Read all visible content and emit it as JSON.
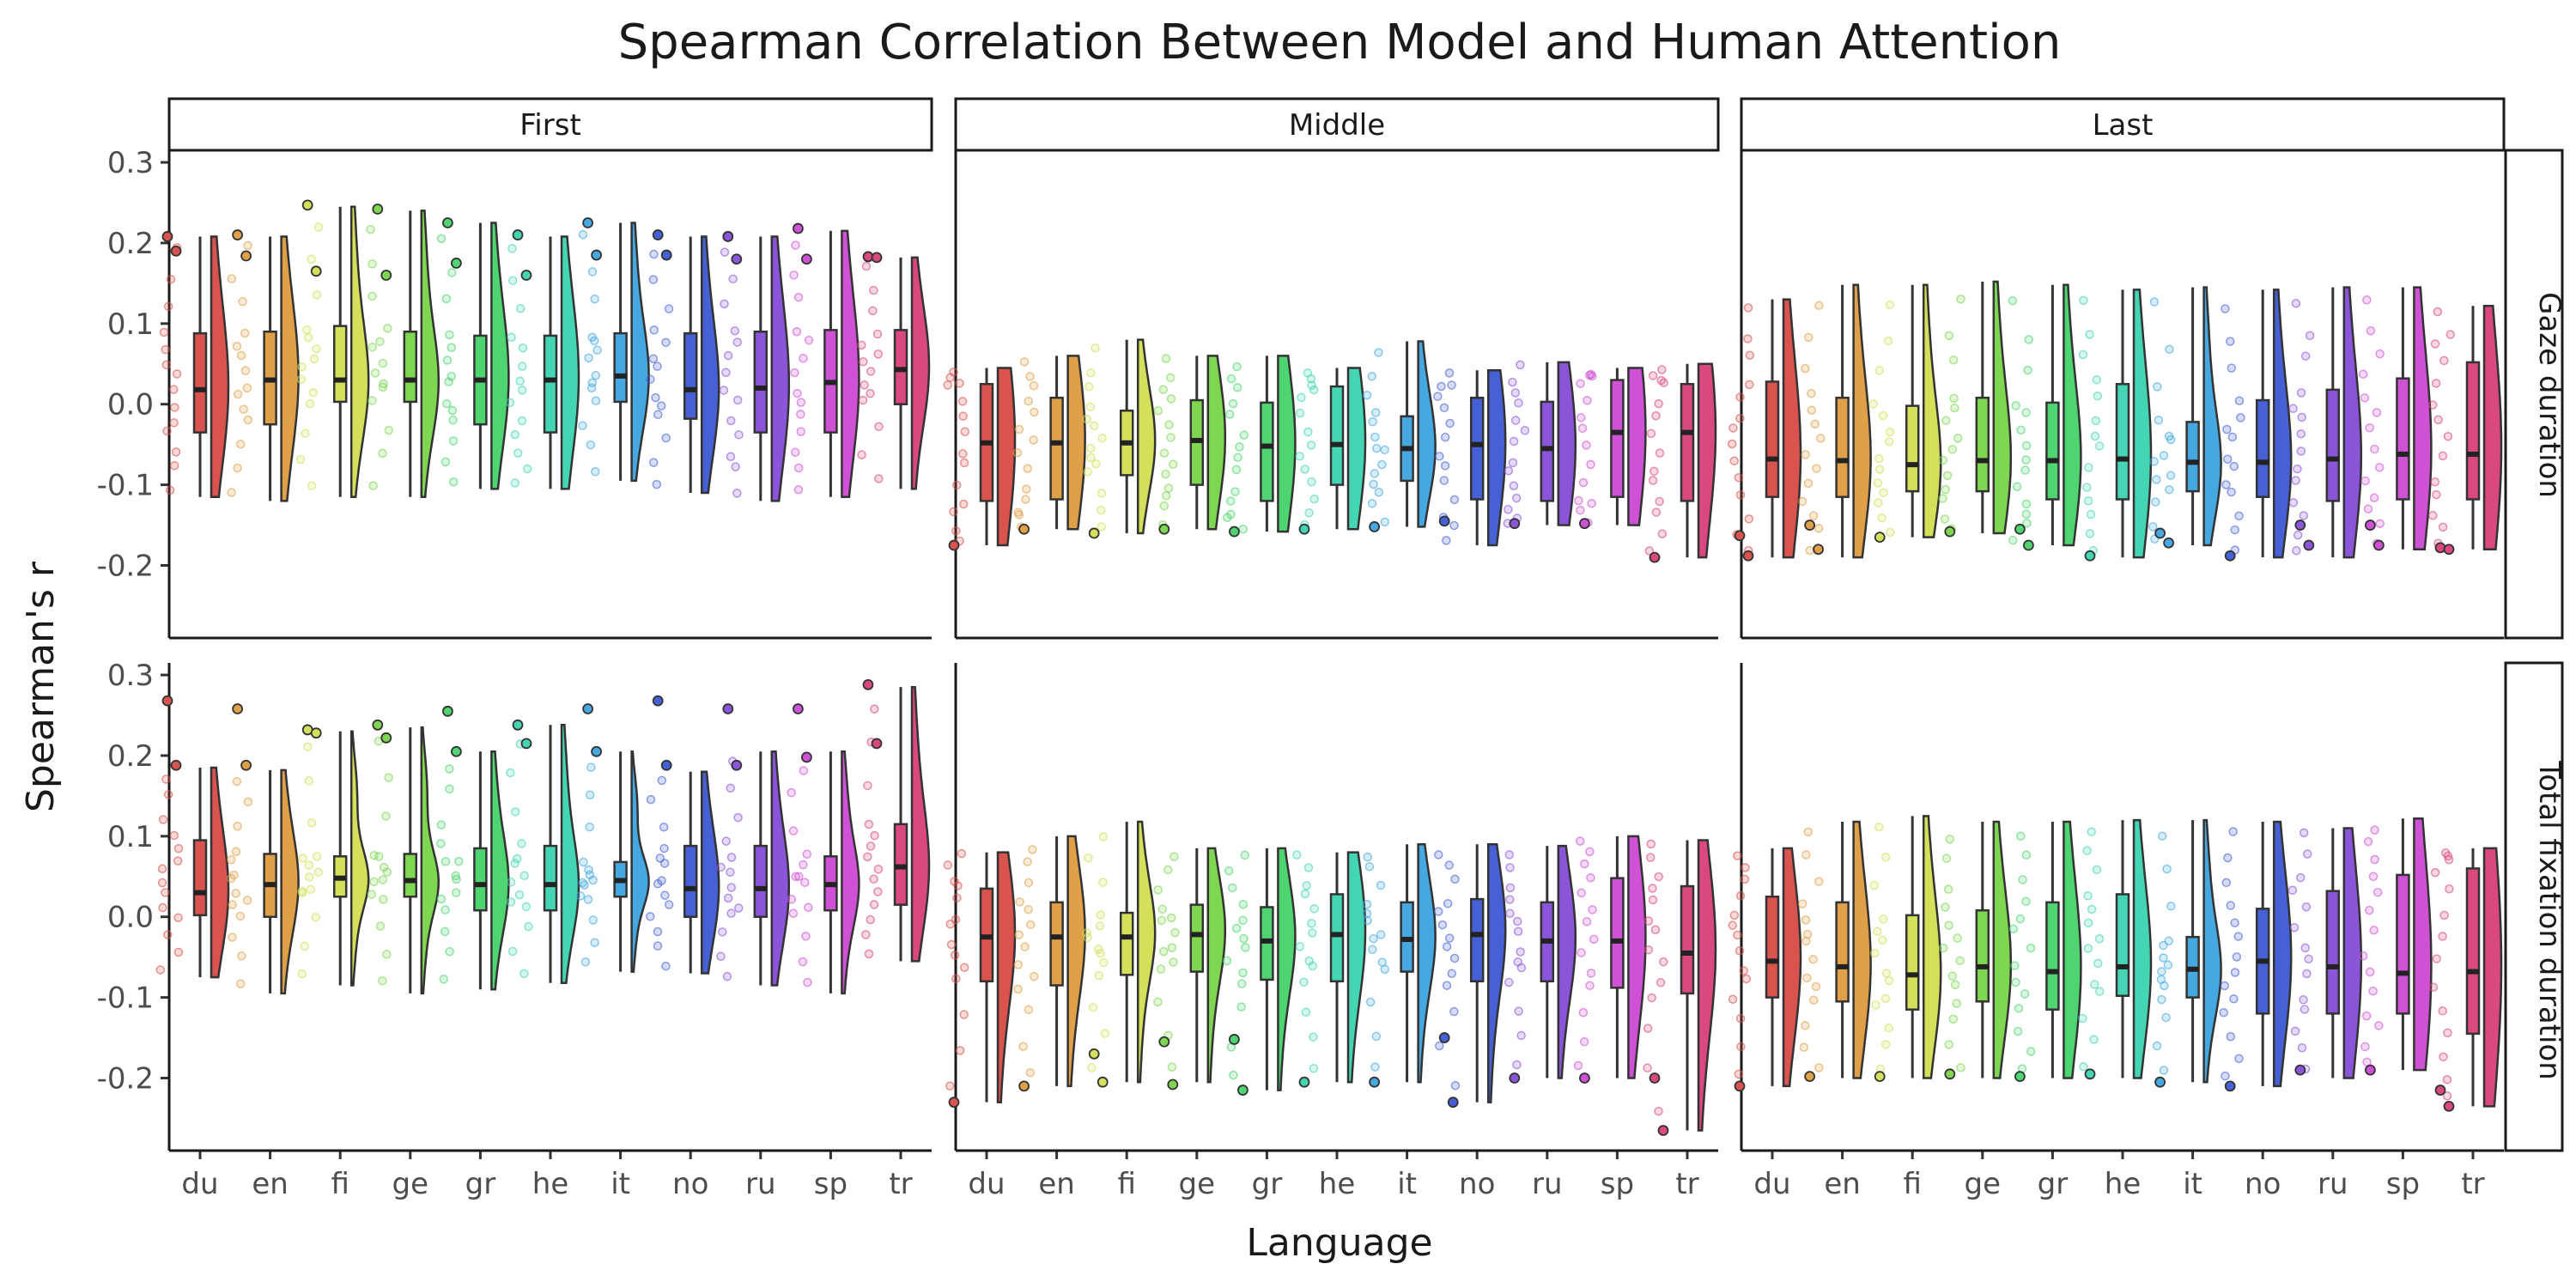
{
  "chart_data": {
    "type": "violin+box+strip",
    "title": "Spearman Correlation Between Model and Human Attention",
    "xlabel": "Language",
    "ylabel": "Spearman's r",
    "languages": [
      "du",
      "en",
      "fi",
      "ge",
      "gr",
      "he",
      "it",
      "no",
      "ru",
      "sp",
      "tr"
    ],
    "colors": [
      "#d9534f",
      "#e0a048",
      "#d4e05a",
      "#7fd651",
      "#4fd472",
      "#44d6b4",
      "#45a8e0",
      "#4660d6",
      "#8a55d9",
      "#cf52d6",
      "#d9487f"
    ],
    "yticks": [
      -0.2,
      -0.1,
      0.0,
      0.1,
      0.2,
      0.3
    ],
    "ytick_labels": [
      "-0.2",
      "-0.1",
      "0.0",
      "0.1",
      "0.2",
      "0.3"
    ],
    "ylim": [
      -0.29,
      0.315
    ],
    "columns": [
      "First",
      "Middle",
      "Last"
    ],
    "rows": [
      "Gaze duration",
      "Total fixation duration"
    ],
    "panels": [
      {
        "row": 0,
        "col": 0,
        "groups": [
          {
            "min": -0.115,
            "q1": -0.035,
            "median": 0.018,
            "q3": 0.088,
            "max": 0.208,
            "outliers": [
              0.208,
              0.19
            ]
          },
          {
            "min": -0.12,
            "q1": -0.025,
            "median": 0.03,
            "q3": 0.09,
            "max": 0.208,
            "outliers": [
              0.21,
              0.184
            ]
          },
          {
            "min": -0.115,
            "q1": 0.003,
            "median": 0.03,
            "q3": 0.097,
            "max": 0.245,
            "outliers": [
              0.247,
              0.165
            ]
          },
          {
            "min": -0.115,
            "q1": 0.003,
            "median": 0.03,
            "q3": 0.09,
            "max": 0.24,
            "outliers": [
              0.242,
              0.16
            ]
          },
          {
            "min": -0.105,
            "q1": -0.025,
            "median": 0.03,
            "q3": 0.085,
            "max": 0.225,
            "outliers": [
              0.225,
              0.175
            ]
          },
          {
            "min": -0.105,
            "q1": -0.035,
            "median": 0.03,
            "q3": 0.085,
            "max": 0.208,
            "outliers": [
              0.21,
              0.16
            ]
          },
          {
            "min": -0.095,
            "q1": 0.003,
            "median": 0.035,
            "q3": 0.088,
            "max": 0.225,
            "outliers": [
              0.225,
              0.185
            ]
          },
          {
            "min": -0.11,
            "q1": -0.018,
            "median": 0.018,
            "q3": 0.088,
            "max": 0.208,
            "outliers": [
              0.21,
              0.185
            ]
          },
          {
            "min": -0.12,
            "q1": -0.035,
            "median": 0.02,
            "q3": 0.09,
            "max": 0.208,
            "outliers": [
              0.208,
              0.18
            ]
          },
          {
            "min": -0.115,
            "q1": -0.035,
            "median": 0.027,
            "q3": 0.092,
            "max": 0.215,
            "outliers": [
              0.218,
              0.18
            ]
          },
          {
            "min": -0.105,
            "q1": 0.0,
            "median": 0.043,
            "q3": 0.092,
            "max": 0.182,
            "outliers": [
              0.183,
              0.182
            ]
          }
        ]
      },
      {
        "row": 0,
        "col": 1,
        "groups": [
          {
            "min": -0.175,
            "q1": -0.12,
            "median": -0.048,
            "q3": 0.025,
            "max": 0.045,
            "outliers": [
              -0.175
            ]
          },
          {
            "min": -0.155,
            "q1": -0.118,
            "median": -0.048,
            "q3": 0.008,
            "max": 0.06,
            "outliers": [
              -0.155
            ]
          },
          {
            "min": -0.16,
            "q1": -0.088,
            "median": -0.048,
            "q3": -0.008,
            "max": 0.08,
            "outliers": [
              -0.16
            ]
          },
          {
            "min": -0.155,
            "q1": -0.1,
            "median": -0.045,
            "q3": 0.005,
            "max": 0.06,
            "outliers": [
              -0.155
            ]
          },
          {
            "min": -0.158,
            "q1": -0.12,
            "median": -0.052,
            "q3": 0.002,
            "max": 0.06,
            "outliers": [
              -0.158
            ]
          },
          {
            "min": -0.155,
            "q1": -0.1,
            "median": -0.05,
            "q3": 0.022,
            "max": 0.045,
            "outliers": [
              -0.155
            ]
          },
          {
            "min": -0.152,
            "q1": -0.095,
            "median": -0.055,
            "q3": -0.015,
            "max": 0.078,
            "outliers": [
              -0.152
            ]
          },
          {
            "min": -0.175,
            "q1": -0.118,
            "median": -0.05,
            "q3": 0.008,
            "max": 0.042,
            "outliers": [
              -0.145
            ]
          },
          {
            "min": -0.15,
            "q1": -0.12,
            "median": -0.055,
            "q3": 0.003,
            "max": 0.052,
            "outliers": [
              -0.148
            ]
          },
          {
            "min": -0.15,
            "q1": -0.115,
            "median": -0.035,
            "q3": 0.03,
            "max": 0.045,
            "outliers": [
              -0.148
            ]
          },
          {
            "min": -0.19,
            "q1": -0.12,
            "median": -0.035,
            "q3": 0.025,
            "max": 0.05,
            "outliers": [
              -0.19
            ]
          }
        ]
      },
      {
        "row": 0,
        "col": 2,
        "groups": [
          {
            "min": -0.19,
            "q1": -0.115,
            "median": -0.068,
            "q3": 0.028,
            "max": 0.13,
            "outliers": [
              -0.163,
              -0.188
            ]
          },
          {
            "min": -0.19,
            "q1": -0.115,
            "median": -0.07,
            "q3": 0.008,
            "max": 0.148,
            "outliers": [
              -0.15,
              -0.18
            ]
          },
          {
            "min": -0.165,
            "q1": -0.108,
            "median": -0.075,
            "q3": -0.002,
            "max": 0.148,
            "outliers": [
              -0.165
            ]
          },
          {
            "min": -0.16,
            "q1": -0.108,
            "median": -0.07,
            "q3": 0.008,
            "max": 0.152,
            "outliers": [
              -0.158
            ]
          },
          {
            "min": -0.175,
            "q1": -0.118,
            "median": -0.07,
            "q3": 0.002,
            "max": 0.148,
            "outliers": [
              -0.155,
              -0.175
            ]
          },
          {
            "min": -0.19,
            "q1": -0.118,
            "median": -0.068,
            "q3": 0.025,
            "max": 0.142,
            "outliers": [
              -0.188
            ]
          },
          {
            "min": -0.175,
            "q1": -0.108,
            "median": -0.072,
            "q3": -0.022,
            "max": 0.145,
            "outliers": [
              -0.16,
              -0.172
            ]
          },
          {
            "min": -0.19,
            "q1": -0.115,
            "median": -0.072,
            "q3": 0.005,
            "max": 0.142,
            "outliers": [
              -0.188
            ]
          },
          {
            "min": -0.19,
            "q1": -0.12,
            "median": -0.068,
            "q3": 0.018,
            "max": 0.145,
            "outliers": [
              -0.15,
              -0.175
            ]
          },
          {
            "min": -0.18,
            "q1": -0.118,
            "median": -0.062,
            "q3": 0.032,
            "max": 0.145,
            "outliers": [
              -0.15,
              -0.175
            ]
          },
          {
            "min": -0.18,
            "q1": -0.118,
            "median": -0.062,
            "q3": 0.052,
            "max": 0.122,
            "outliers": [
              -0.178,
              -0.18
            ]
          }
        ]
      },
      {
        "row": 1,
        "col": 0,
        "groups": [
          {
            "min": -0.075,
            "q1": 0.002,
            "median": 0.03,
            "q3": 0.095,
            "max": 0.185,
            "outliers": [
              0.268,
              0.188
            ]
          },
          {
            "min": -0.095,
            "q1": 0.0,
            "median": 0.04,
            "q3": 0.078,
            "max": 0.182,
            "outliers": [
              0.258,
              0.188
            ]
          },
          {
            "min": -0.085,
            "q1": 0.025,
            "median": 0.048,
            "q3": 0.075,
            "max": 0.23,
            "outliers": [
              0.232,
              0.228
            ]
          },
          {
            "min": -0.095,
            "q1": 0.025,
            "median": 0.045,
            "q3": 0.078,
            "max": 0.235,
            "outliers": [
              0.238,
              0.222
            ]
          },
          {
            "min": -0.09,
            "q1": 0.008,
            "median": 0.04,
            "q3": 0.085,
            "max": 0.205,
            "outliers": [
              0.255,
              0.205
            ]
          },
          {
            "min": -0.082,
            "q1": 0.008,
            "median": 0.04,
            "q3": 0.088,
            "max": 0.238,
            "outliers": [
              0.238,
              0.215
            ]
          },
          {
            "min": -0.068,
            "q1": 0.025,
            "median": 0.045,
            "q3": 0.068,
            "max": 0.205,
            "outliers": [
              0.258,
              0.205
            ]
          },
          {
            "min": -0.07,
            "q1": 0.0,
            "median": 0.035,
            "q3": 0.088,
            "max": 0.18,
            "outliers": [
              0.268,
              0.188
            ]
          },
          {
            "min": -0.085,
            "q1": 0.0,
            "median": 0.035,
            "q3": 0.088,
            "max": 0.205,
            "outliers": [
              0.258,
              0.188
            ]
          },
          {
            "min": -0.095,
            "q1": 0.008,
            "median": 0.04,
            "q3": 0.075,
            "max": 0.205,
            "outliers": [
              0.258,
              0.198
            ]
          },
          {
            "min": -0.055,
            "q1": 0.015,
            "median": 0.062,
            "q3": 0.115,
            "max": 0.285,
            "outliers": [
              0.288,
              0.215
            ]
          }
        ]
      },
      {
        "row": 1,
        "col": 1,
        "groups": [
          {
            "min": -0.23,
            "q1": -0.08,
            "median": -0.025,
            "q3": 0.035,
            "max": 0.08,
            "outliers": [
              -0.23
            ]
          },
          {
            "min": -0.21,
            "q1": -0.085,
            "median": -0.025,
            "q3": 0.018,
            "max": 0.1,
            "outliers": [
              -0.21
            ]
          },
          {
            "min": -0.205,
            "q1": -0.072,
            "median": -0.025,
            "q3": 0.005,
            "max": 0.118,
            "outliers": [
              -0.17,
              -0.205
            ]
          },
          {
            "min": -0.205,
            "q1": -0.068,
            "median": -0.022,
            "q3": 0.015,
            "max": 0.085,
            "outliers": [
              -0.155,
              -0.208
            ]
          },
          {
            "min": -0.215,
            "q1": -0.078,
            "median": -0.03,
            "q3": 0.012,
            "max": 0.085,
            "outliers": [
              -0.152,
              -0.215
            ]
          },
          {
            "min": -0.205,
            "q1": -0.08,
            "median": -0.022,
            "q3": 0.028,
            "max": 0.08,
            "outliers": [
              -0.205
            ]
          },
          {
            "min": -0.205,
            "q1": -0.068,
            "median": -0.028,
            "q3": 0.018,
            "max": 0.09,
            "outliers": [
              -0.205
            ]
          },
          {
            "min": -0.23,
            "q1": -0.08,
            "median": -0.022,
            "q3": 0.022,
            "max": 0.09,
            "outliers": [
              -0.15,
              -0.23
            ]
          },
          {
            "min": -0.2,
            "q1": -0.08,
            "median": -0.03,
            "q3": 0.018,
            "max": 0.088,
            "outliers": [
              -0.2
            ]
          },
          {
            "min": -0.2,
            "q1": -0.088,
            "median": -0.03,
            "q3": 0.048,
            "max": 0.1,
            "outliers": [
              -0.2
            ]
          },
          {
            "min": -0.265,
            "q1": -0.095,
            "median": -0.045,
            "q3": 0.038,
            "max": 0.095,
            "outliers": [
              -0.2,
              -0.265
            ]
          }
        ]
      },
      {
        "row": 1,
        "col": 2,
        "groups": [
          {
            "min": -0.21,
            "q1": -0.1,
            "median": -0.055,
            "q3": 0.025,
            "max": 0.085,
            "outliers": [
              -0.21
            ]
          },
          {
            "min": -0.2,
            "q1": -0.105,
            "median": -0.062,
            "q3": 0.018,
            "max": 0.118,
            "outliers": [
              -0.198
            ]
          },
          {
            "min": -0.2,
            "q1": -0.115,
            "median": -0.072,
            "q3": 0.002,
            "max": 0.125,
            "outliers": [
              -0.198
            ]
          },
          {
            "min": -0.2,
            "q1": -0.105,
            "median": -0.062,
            "q3": 0.008,
            "max": 0.118,
            "outliers": [
              -0.195
            ]
          },
          {
            "min": -0.2,
            "q1": -0.115,
            "median": -0.068,
            "q3": 0.018,
            "max": 0.118,
            "outliers": [
              -0.198
            ]
          },
          {
            "min": -0.2,
            "q1": -0.098,
            "median": -0.062,
            "q3": 0.028,
            "max": 0.12,
            "outliers": [
              -0.195
            ]
          },
          {
            "min": -0.205,
            "q1": -0.1,
            "median": -0.065,
            "q3": -0.025,
            "max": 0.12,
            "outliers": [
              -0.205
            ]
          },
          {
            "min": -0.21,
            "q1": -0.12,
            "median": -0.055,
            "q3": 0.01,
            "max": 0.118,
            "outliers": [
              -0.21
            ]
          },
          {
            "min": -0.2,
            "q1": -0.12,
            "median": -0.062,
            "q3": 0.032,
            "max": 0.11,
            "outliers": [
              -0.19
            ]
          },
          {
            "min": -0.19,
            "q1": -0.12,
            "median": -0.07,
            "q3": 0.052,
            "max": 0.122,
            "outliers": [
              -0.19
            ]
          },
          {
            "min": -0.235,
            "q1": -0.145,
            "median": -0.068,
            "q3": 0.06,
            "max": 0.085,
            "outliers": [
              -0.215,
              -0.235
            ]
          }
        ]
      }
    ]
  }
}
